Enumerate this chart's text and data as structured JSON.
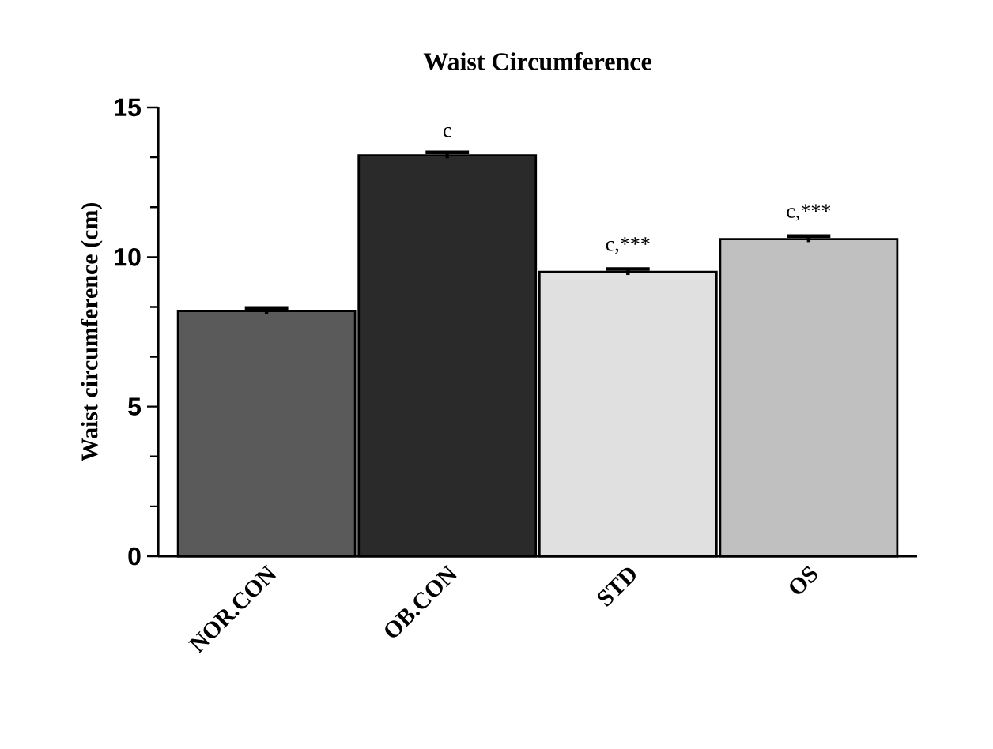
{
  "chart_data": {
    "type": "bar",
    "title": "Waist Circumference",
    "ylabel": "Waist circumference (cm)",
    "categories": [
      "NOR.CON",
      "OB.CON",
      "STD",
      "OS"
    ],
    "values": [
      8.2,
      13.4,
      9.5,
      10.6
    ],
    "errors": [
      0.1,
      0.1,
      0.1,
      0.1
    ],
    "colors": [
      "#5a5a5a",
      "#2a2a2a",
      "#e0e0e0",
      "#c0c0c0"
    ],
    "ylim": [
      0,
      15
    ],
    "yticks": [
      0,
      5,
      10,
      15
    ],
    "annotations": [
      {
        "text": "c",
        "x": "OB.CON",
        "y": 13.4
      },
      {
        "text": "c,***",
        "x": "STD",
        "y": 9.5
      },
      {
        "text": "c,***",
        "x": "OS",
        "y": 10.6
      }
    ]
  }
}
